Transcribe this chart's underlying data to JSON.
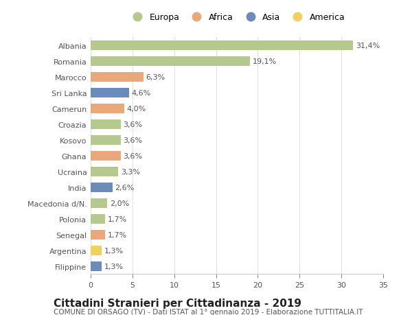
{
  "countries": [
    "Albania",
    "Romania",
    "Marocco",
    "Sri Lanka",
    "Camerun",
    "Croazia",
    "Kosovo",
    "Ghana",
    "Ucraina",
    "India",
    "Macedonia d/N.",
    "Polonia",
    "Senegal",
    "Argentina",
    "Filippine"
  ],
  "values": [
    31.4,
    19.1,
    6.3,
    4.6,
    4.0,
    3.6,
    3.6,
    3.6,
    3.3,
    2.6,
    2.0,
    1.7,
    1.7,
    1.3,
    1.3
  ],
  "continents": [
    "Europa",
    "Europa",
    "Africa",
    "Asia",
    "Africa",
    "Europa",
    "Europa",
    "Africa",
    "Europa",
    "Asia",
    "Europa",
    "Europa",
    "Africa",
    "America",
    "Asia"
  ],
  "colors": {
    "Europa": "#b5c98e",
    "Africa": "#e8a87c",
    "Asia": "#6b8cba",
    "America": "#f0d060"
  },
  "legend_order": [
    "Europa",
    "Africa",
    "Asia",
    "America"
  ],
  "title": "Cittadini Stranieri per Cittadinanza - 2019",
  "subtitle": "COMUNE DI ORSAGO (TV) - Dati ISTAT al 1° gennaio 2019 - Elaborazione TUTTITALIA.IT",
  "xlim": [
    0,
    35
  ],
  "xticks": [
    0,
    5,
    10,
    15,
    20,
    25,
    30,
    35
  ],
  "background_color": "#ffffff",
  "grid_color": "#e0e0e0",
  "bar_height": 0.6,
  "label_fontsize": 8,
  "ytick_fontsize": 8,
  "xtick_fontsize": 8,
  "legend_fontsize": 9,
  "title_fontsize": 11,
  "subtitle_fontsize": 7.5
}
